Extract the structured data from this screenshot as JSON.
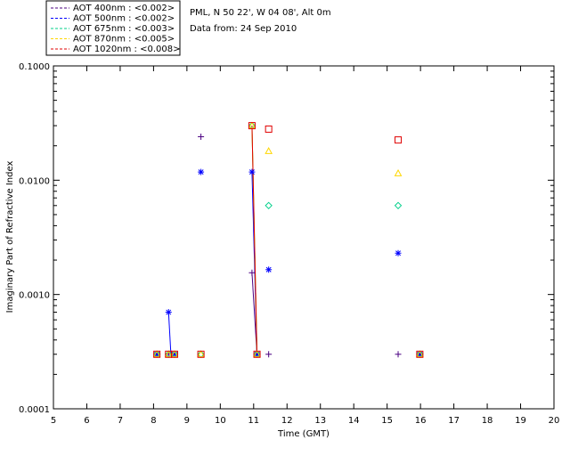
{
  "chart_data": {
    "type": "scatter",
    "info_lines": [
      "PML, N 50 22', W 04 08', Alt 0m",
      "Data from: 24 Sep 2010"
    ],
    "xlabel": "Time (GMT)",
    "ylabel": "Imaginary Part of Refractive Index",
    "xlim": [
      5,
      20
    ],
    "ylim": [
      0.0001,
      0.1
    ],
    "yscale": "log",
    "grid": false,
    "legend_position": "top-left, above plot",
    "x_ticks": [
      5,
      6,
      7,
      8,
      9,
      10,
      11,
      12,
      13,
      14,
      15,
      16,
      17,
      18,
      19,
      20
    ],
    "x_tick_labels": [
      "5",
      "6",
      "7",
      "8",
      "9",
      "10",
      "11",
      "12",
      "13",
      "14",
      "15",
      "16",
      "17",
      "18",
      "19",
      "20"
    ],
    "y_ticks": [
      0.0001,
      0.001,
      0.01,
      0.1
    ],
    "y_tick_labels": [
      "0.0001",
      "0.0010",
      "0.0100",
      "0.1000"
    ],
    "series": [
      {
        "name": "AOT  400nm : <0.002>",
        "color": "#4b0082",
        "marker": "plus",
        "points": [
          {
            "x": 8.1,
            "y": 0.0003
          },
          {
            "x": 8.45,
            "y": 0.0003
          },
          {
            "x": 8.63,
            "y": 0.0003
          },
          {
            "x": 9.42,
            "y": 0.024
          },
          {
            "x": 10.95,
            "y": 0.00155
          },
          {
            "x": 11.1,
            "y": 0.0003
          },
          {
            "x": 11.45,
            "y": 0.0003
          },
          {
            "x": 15.33,
            "y": 0.0003
          },
          {
            "x": 15.98,
            "y": 0.0003
          }
        ],
        "line": [
          {
            "x": 10.95,
            "y": 0.00155
          },
          {
            "x": 11.1,
            "y": 0.0003
          }
        ]
      },
      {
        "name": "AOT  500nm : <0.002>",
        "color": "#0000ff",
        "marker": "asterisk",
        "points": [
          {
            "x": 8.1,
            "y": 0.0003
          },
          {
            "x": 8.45,
            "y": 0.0007
          },
          {
            "x": 8.63,
            "y": 0.0003
          },
          {
            "x": 9.42,
            "y": 0.0118
          },
          {
            "x": 10.95,
            "y": 0.0118
          },
          {
            "x": 11.1,
            "y": 0.0003
          },
          {
            "x": 11.45,
            "y": 0.00165
          },
          {
            "x": 15.33,
            "y": 0.0023
          },
          {
            "x": 15.98,
            "y": 0.0003
          }
        ],
        "line": [
          {
            "x": 8.45,
            "y": 0.0007
          },
          {
            "x": 8.52,
            "y": 0.0003
          },
          {
            "x": 10.95,
            "y": 0.0118
          },
          {
            "x": 11.1,
            "y": 0.0003
          }
        ]
      },
      {
        "name": "AOT  675nm : <0.003>",
        "color": "#00d08a",
        "marker": "diamond",
        "points": [
          {
            "x": 8.1,
            "y": 0.0003
          },
          {
            "x": 8.45,
            "y": 0.0003
          },
          {
            "x": 8.63,
            "y": 0.0003
          },
          {
            "x": 9.42,
            "y": 0.0003
          },
          {
            "x": 10.95,
            "y": 0.03
          },
          {
            "x": 11.1,
            "y": 0.0003
          },
          {
            "x": 11.45,
            "y": 0.006
          },
          {
            "x": 15.33,
            "y": 0.006
          },
          {
            "x": 15.98,
            "y": 0.0003
          }
        ],
        "line": [
          {
            "x": 10.95,
            "y": 0.03
          },
          {
            "x": 11.1,
            "y": 0.0003
          }
        ]
      },
      {
        "name": "AOT  870nm : <0.005>",
        "color": "#ffd700",
        "marker": "triangle",
        "points": [
          {
            "x": 8.1,
            "y": 0.0003
          },
          {
            "x": 8.45,
            "y": 0.0003
          },
          {
            "x": 8.63,
            "y": 0.0003
          },
          {
            "x": 9.42,
            "y": 0.0003
          },
          {
            "x": 10.95,
            "y": 0.03
          },
          {
            "x": 11.1,
            "y": 0.0003
          },
          {
            "x": 11.45,
            "y": 0.018
          },
          {
            "x": 15.33,
            "y": 0.0115
          },
          {
            "x": 15.98,
            "y": 0.0003
          }
        ],
        "line": [
          {
            "x": 10.95,
            "y": 0.03
          },
          {
            "x": 11.1,
            "y": 0.0003
          }
        ]
      },
      {
        "name": "AOT 1020nm : <0.008>",
        "color": "#e00000",
        "marker": "square",
        "points": [
          {
            "x": 8.1,
            "y": 0.0003
          },
          {
            "x": 8.45,
            "y": 0.0003
          },
          {
            "x": 8.63,
            "y": 0.0003
          },
          {
            "x": 9.42,
            "y": 0.0003
          },
          {
            "x": 10.95,
            "y": 0.03
          },
          {
            "x": 11.1,
            "y": 0.0003
          },
          {
            "x": 11.45,
            "y": 0.028
          },
          {
            "x": 15.33,
            "y": 0.0225
          },
          {
            "x": 15.98,
            "y": 0.0003
          }
        ],
        "line": [
          {
            "x": 10.95,
            "y": 0.03
          },
          {
            "x": 11.1,
            "y": 0.0003
          }
        ]
      }
    ]
  }
}
